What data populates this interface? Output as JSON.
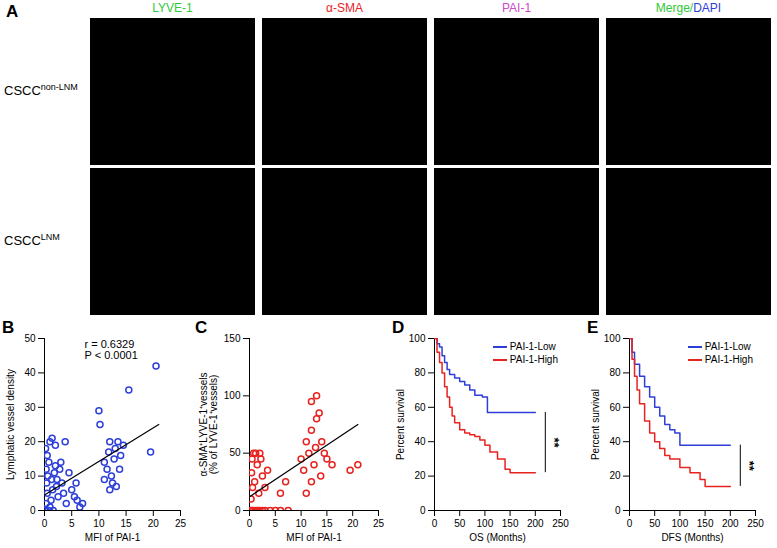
{
  "panel_A": {
    "panel_label": "A",
    "columns": [
      [
        {
          "text": "LYVE-1",
          "color": "#2fc93a"
        }
      ],
      [
        {
          "text": "α-SMA",
          "color": "#e8231f"
        }
      ],
      [
        {
          "text": "PAI-1",
          "color": "#c84bc9"
        }
      ],
      [
        {
          "text": "Merge/",
          "color": "#2fc93a"
        },
        {
          "text": "DAPI",
          "color": "#2b3fd6"
        }
      ]
    ],
    "rows": [
      {
        "label": "CSCC",
        "superscript": "non-LNM"
      },
      {
        "label": "CSCC",
        "superscript": "LNM"
      }
    ]
  },
  "chart_data": [
    {
      "panel_label": "B",
      "type": "scatter",
      "marker": "open_circle",
      "color": "#2e3fd8",
      "xlabel": "MFI of PAI-1",
      "ylabel": [
        "Lymphatic vessel density"
      ],
      "xlim": [
        0,
        25
      ],
      "xticks": [
        0,
        5,
        10,
        15,
        20,
        25
      ],
      "ylim": [
        0,
        50
      ],
      "yticks": [
        0,
        10,
        20,
        30,
        40,
        50
      ],
      "annotations": [
        "r = 0.6329",
        "P < 0.0001"
      ],
      "x": [
        0.2,
        0.3,
        0.5,
        0.4,
        0.6,
        0.3,
        0.8,
        0.5,
        0.2,
        1,
        1.2,
        1.5,
        1.3,
        1.8,
        2,
        2.2,
        2.5,
        1,
        0.7,
        1.6,
        2.3,
        2.8,
        3,
        3.2,
        2,
        1.4,
        3.5,
        4,
        5,
        5.5,
        6,
        6.5,
        7,
        5.8,
        10,
        10.2,
        11,
        11.5,
        11.8,
        12,
        12.3,
        12.5,
        12.8,
        13,
        13.2,
        13.5,
        13.8,
        14,
        14.5,
        15.5,
        20.5,
        19.5,
        11,
        12,
        3.8,
        4.5
      ],
      "values": [
        0,
        2,
        5,
        8,
        10,
        12,
        14,
        16,
        18,
        20,
        3,
        6,
        9,
        11,
        13,
        7,
        4,
        1,
        0,
        0,
        9,
        12,
        14,
        8,
        19,
        21,
        5,
        2,
        6,
        4,
        3,
        1,
        2,
        8,
        29,
        25,
        14,
        12,
        17,
        20,
        10,
        8,
        15,
        18,
        7,
        20,
        12,
        16,
        19,
        35,
        42,
        17,
        9,
        6,
        20,
        11
      ],
      "trend_line": {
        "x": [
          0,
          21
        ],
        "values": [
          4.5,
          25
        ]
      }
    },
    {
      "panel_label": "C",
      "type": "scatter",
      "marker": "open_circle",
      "color": "#e8231f",
      "xlabel": "MFI of PAI-1",
      "ylabel": [
        "α-SMA⁺LYVE-1⁺vessels",
        "(% of LYVE-1⁺vessels)"
      ],
      "xlim": [
        0,
        25
      ],
      "xticks": [
        0,
        5,
        10,
        15,
        20,
        25
      ],
      "ylim": [
        0,
        150
      ],
      "yticks": [
        0,
        50,
        100,
        150
      ],
      "x": [
        0.2,
        0.5,
        0.8,
        1.2,
        1.6,
        2,
        2.5,
        3,
        4,
        5,
        6,
        7.5,
        0.3,
        0.6,
        1,
        0.4,
        1.5,
        0.8,
        2,
        2.5,
        3,
        1.8,
        3.5,
        2.2,
        1.2,
        0.5,
        6,
        7,
        10,
        10.5,
        11,
        11.5,
        12,
        12,
        12.5,
        13,
        13,
        13.5,
        14,
        14.5,
        15,
        16,
        13.8,
        12.8,
        19.5,
        21,
        11,
        12
      ],
      "values": [
        0,
        0,
        0,
        0,
        0,
        0,
        0,
        0,
        0,
        0,
        0,
        0,
        10,
        20,
        25,
        33,
        40,
        50,
        50,
        30,
        20,
        15,
        35,
        45,
        50,
        45,
        15,
        25,
        45,
        35,
        60,
        50,
        70,
        95,
        40,
        100,
        80,
        85,
        60,
        50,
        45,
        40,
        30,
        55,
        35,
        40,
        15,
        25
      ],
      "trend_line": {
        "x": [
          0,
          21
        ],
        "values": [
          12,
          75
        ]
      }
    },
    {
      "panel_label": "D",
      "type": "line",
      "line_style": "step",
      "legend": "top-right",
      "xlabel": "OS (Months)",
      "ylabel": [
        "Percent survival"
      ],
      "xlim": [
        0,
        250
      ],
      "xticks": [
        0,
        50,
        100,
        150,
        200,
        250
      ],
      "ylim": [
        0,
        100
      ],
      "yticks": [
        0,
        20,
        40,
        60,
        80,
        100
      ],
      "significance": "**",
      "series": [
        {
          "name": "PAI-1-Low",
          "color": "#2e3fd8",
          "x": [
            0,
            5,
            10,
            15,
            20,
            25,
            30,
            40,
            50,
            60,
            70,
            80,
            95,
            105,
            200
          ],
          "values": [
            100,
            97,
            95,
            90,
            86,
            82,
            79,
            77,
            75,
            73,
            70,
            67,
            66,
            57,
            57
          ]
        },
        {
          "name": "PAI-1-High",
          "color": "#e8231f",
          "x": [
            0,
            5,
            10,
            15,
            20,
            25,
            30,
            35,
            40,
            50,
            60,
            70,
            80,
            90,
            100,
            110,
            125,
            140,
            150,
            200
          ],
          "values": [
            100,
            92,
            86,
            80,
            72,
            66,
            60,
            55,
            51,
            47,
            45,
            44,
            43,
            41,
            38,
            34,
            30,
            24,
            22,
            22
          ]
        }
      ]
    },
    {
      "panel_label": "E",
      "type": "line",
      "line_style": "step",
      "legend": "top-right",
      "xlabel": "DFS (Months)",
      "ylabel": [
        "Percent survival"
      ],
      "xlim": [
        0,
        250
      ],
      "xticks": [
        0,
        50,
        100,
        150,
        200,
        250
      ],
      "ylim": [
        0,
        100
      ],
      "yticks": [
        0,
        20,
        40,
        60,
        80,
        100
      ],
      "significance": "**",
      "series": [
        {
          "name": "PAI-1-Low",
          "color": "#2e3fd8",
          "x": [
            0,
            5,
            10,
            20,
            30,
            40,
            50,
            60,
            70,
            80,
            90,
            100,
            200
          ],
          "values": [
            100,
            92,
            85,
            78,
            72,
            66,
            60,
            55,
            50,
            47,
            45,
            38,
            38
          ]
        },
        {
          "name": "PAI-1-High",
          "color": "#e8231f",
          "x": [
            0,
            5,
            10,
            15,
            20,
            30,
            40,
            50,
            60,
            70,
            80,
            100,
            120,
            140,
            150,
            200
          ],
          "values": [
            100,
            88,
            78,
            70,
            62,
            52,
            45,
            40,
            36,
            32,
            30,
            25,
            22,
            18,
            14,
            14
          ]
        }
      ]
    }
  ]
}
